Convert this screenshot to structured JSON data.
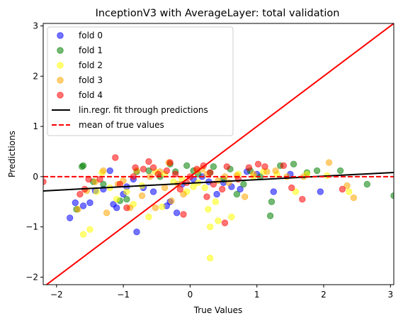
{
  "chart_data": {
    "type": "scatter",
    "title": "InceptionV3 with AverageLayer: total validation",
    "xlabel": "True Values",
    "ylabel": "Predictions",
    "xlim": [
      -2.2,
      3.05
    ],
    "ylim": [
      -2.15,
      3.05
    ],
    "xticks": [
      -2,
      -1,
      0,
      1,
      2,
      3
    ],
    "yticks": [
      -2,
      -1,
      0,
      1,
      2,
      3
    ],
    "grid": false,
    "legend_position": "top-left",
    "point_alpha": 0.55,
    "series": [
      {
        "name": "fold 0",
        "color": "#0000ff",
        "points": [
          [
            -1.8,
            -0.82
          ],
          [
            -1.72,
            -0.52
          ],
          [
            -1.6,
            -0.58
          ],
          [
            -1.5,
            -0.52
          ],
          [
            -1.42,
            -0.28
          ],
          [
            -1.3,
            -0.25
          ],
          [
            -1.2,
            0.12
          ],
          [
            -1.15,
            -0.55
          ],
          [
            -1.1,
            -0.62
          ],
          [
            -1.0,
            -0.35
          ],
          [
            -0.95,
            -0.2
          ],
          [
            -0.85,
            -0.05
          ],
          [
            -0.8,
            -1.1
          ],
          [
            -0.7,
            -0.22
          ],
          [
            -0.55,
            -0.3
          ],
          [
            -0.35,
            -0.58
          ],
          [
            -0.3,
            -0.5
          ],
          [
            -0.2,
            -0.72
          ],
          [
            -0.12,
            -0.15
          ],
          [
            0.05,
            -0.05
          ],
          [
            0.18,
            0.0
          ],
          [
            0.28,
            -0.1
          ],
          [
            0.4,
            -0.35
          ],
          [
            0.5,
            -0.12
          ],
          [
            0.62,
            -0.2
          ],
          [
            0.75,
            -0.25
          ],
          [
            0.85,
            0.1
          ],
          [
            1.0,
            0.05
          ],
          [
            1.25,
            -0.3
          ],
          [
            1.5,
            0.05
          ],
          [
            1.95,
            -0.3
          ]
        ]
      },
      {
        "name": "fold 1",
        "color": "#008000",
        "points": [
          [
            -1.7,
            -0.65
          ],
          [
            -1.62,
            0.2
          ],
          [
            -1.6,
            0.22
          ],
          [
            -1.45,
            -0.1
          ],
          [
            -1.3,
            -0.15
          ],
          [
            -1.05,
            -0.48
          ],
          [
            -0.95,
            -0.45
          ],
          [
            -0.8,
            0.1
          ],
          [
            -0.62,
            0.12
          ],
          [
            -0.45,
            0.0
          ],
          [
            -0.3,
            0.25
          ],
          [
            -0.22,
            0.1
          ],
          [
            -0.05,
            0.22
          ],
          [
            0.05,
            0.12
          ],
          [
            0.12,
            0.05
          ],
          [
            0.3,
            0.08
          ],
          [
            0.35,
            0.2
          ],
          [
            0.5,
            -0.05
          ],
          [
            0.6,
            0.15
          ],
          [
            0.7,
            -0.35
          ],
          [
            0.8,
            -0.15
          ],
          [
            0.9,
            0.12
          ],
          [
            1.05,
            0.0
          ],
          [
            1.2,
            -0.78
          ],
          [
            1.22,
            -0.5
          ],
          [
            1.35,
            0.22
          ],
          [
            1.55,
            0.25
          ],
          [
            1.75,
            0.08
          ],
          [
            1.9,
            0.12
          ],
          [
            2.25,
            0.12
          ],
          [
            2.65,
            -0.15
          ],
          [
            3.05,
            -0.38
          ]
        ]
      },
      {
        "name": "fold 2",
        "color": "#ffff00",
        "points": [
          [
            -1.6,
            -1.15
          ],
          [
            -1.5,
            -1.05
          ],
          [
            -1.4,
            -0.3
          ],
          [
            -1.32,
            0.08
          ],
          [
            -1.2,
            -0.22
          ],
          [
            -1.1,
            -0.45
          ],
          [
            -0.95,
            -0.3
          ],
          [
            -0.85,
            -0.55
          ],
          [
            -0.72,
            -0.18
          ],
          [
            -0.62,
            -0.8
          ],
          [
            -0.52,
            0.1
          ],
          [
            -0.42,
            -0.6
          ],
          [
            -0.38,
            0.05
          ],
          [
            -0.25,
            -0.1
          ],
          [
            -0.12,
            -0.05
          ],
          [
            -0.05,
            -0.3
          ],
          [
            0.05,
            -0.2
          ],
          [
            0.12,
            -0.12
          ],
          [
            0.22,
            -0.22
          ],
          [
            0.27,
            -0.65
          ],
          [
            0.3,
            -1.0
          ],
          [
            0.3,
            -1.62
          ],
          [
            0.38,
            -0.5
          ],
          [
            0.42,
            -0.88
          ],
          [
            0.62,
            -0.8
          ],
          [
            0.72,
            0.05
          ],
          [
            0.95,
            0.0
          ],
          [
            1.1,
            0.1
          ],
          [
            1.3,
            0.05
          ],
          [
            1.58,
            -0.3
          ],
          [
            1.75,
            0.05
          ],
          [
            2.05,
            0.02
          ],
          [
            2.38,
            -0.3
          ]
        ]
      },
      {
        "name": "fold 3",
        "color": "#ffa500",
        "points": [
          [
            -1.68,
            -0.65
          ],
          [
            -1.55,
            -0.28
          ],
          [
            -1.42,
            -0.1
          ],
          [
            -1.3,
            0.12
          ],
          [
            -1.25,
            -0.72
          ],
          [
            -1.08,
            -0.15
          ],
          [
            -1.0,
            -0.08
          ],
          [
            -0.9,
            -0.62
          ],
          [
            -0.8,
            0.12
          ],
          [
            -0.72,
            -0.38
          ],
          [
            -0.6,
            0.0
          ],
          [
            -0.52,
            -0.62
          ],
          [
            -0.45,
            0.1
          ],
          [
            -0.38,
            -0.22
          ],
          [
            -0.32,
            0.28
          ],
          [
            -0.28,
            -0.48
          ],
          [
            -0.18,
            -0.15
          ],
          [
            -0.1,
            -0.35
          ],
          [
            0.1,
            0.12
          ],
          [
            0.18,
            0.15
          ],
          [
            0.25,
            0.05
          ],
          [
            0.42,
            -0.08
          ],
          [
            0.52,
            0.0
          ],
          [
            0.58,
            -0.12
          ],
          [
            0.7,
            0.02
          ],
          [
            0.82,
            -0.4
          ],
          [
            0.95,
            0.05
          ],
          [
            1.15,
            0.1
          ],
          [
            1.28,
            0.12
          ],
          [
            1.45,
            0.0
          ],
          [
            1.7,
            0.0
          ],
          [
            2.08,
            0.28
          ],
          [
            2.35,
            -0.18
          ],
          [
            2.45,
            -0.42
          ]
        ]
      },
      {
        "name": "fold 4",
        "color": "#ff0000",
        "points": [
          [
            -1.65,
            -0.35
          ],
          [
            -1.58,
            -0.25
          ],
          [
            -1.52,
            -0.05
          ],
          [
            -1.35,
            -0.05
          ],
          [
            -1.12,
            0.38
          ],
          [
            -1.05,
            -0.15
          ],
          [
            -0.95,
            -0.62
          ],
          [
            -0.85,
            0.0
          ],
          [
            -0.82,
            0.18
          ],
          [
            -0.7,
            0.15
          ],
          [
            -0.62,
            0.3
          ],
          [
            -0.55,
            0.18
          ],
          [
            -0.48,
            0.05
          ],
          [
            -0.35,
            0.12
          ],
          [
            -0.3,
            0.28
          ],
          [
            -0.22,
            0.05
          ],
          [
            -0.15,
            -0.25
          ],
          [
            -0.1,
            -0.75
          ],
          [
            -0.05,
            -0.12
          ],
          [
            0.1,
            0.15
          ],
          [
            0.2,
            0.22
          ],
          [
            0.25,
            -0.4
          ],
          [
            0.3,
            0.08
          ],
          [
            0.35,
            -0.15
          ],
          [
            0.48,
            -0.25
          ],
          [
            0.52,
            -0.92
          ],
          [
            0.55,
            0.2
          ],
          [
            0.72,
            -0.05
          ],
          [
            0.88,
            0.18
          ],
          [
            1.02,
            0.25
          ],
          [
            1.12,
            0.2
          ],
          [
            1.4,
            0.22
          ],
          [
            1.52,
            -0.22
          ],
          [
            1.68,
            -0.45
          ],
          [
            2.28,
            -0.25
          ],
          [
            -2.2,
            -0.1
          ],
          [
            0.0,
            0.0
          ]
        ]
      }
    ],
    "lines": [
      {
        "name": "lin.regr. fit through predictions",
        "color": "#000000",
        "style": "solid",
        "slope": 0.07,
        "intercept": -0.13
      },
      {
        "name": "mean of true values",
        "color": "#ff0000",
        "style": "dashed",
        "y": 0.0
      },
      {
        "name": "",
        "color": "#ff0000",
        "style": "solid",
        "slope": 1.0,
        "intercept": 0.0
      }
    ]
  }
}
